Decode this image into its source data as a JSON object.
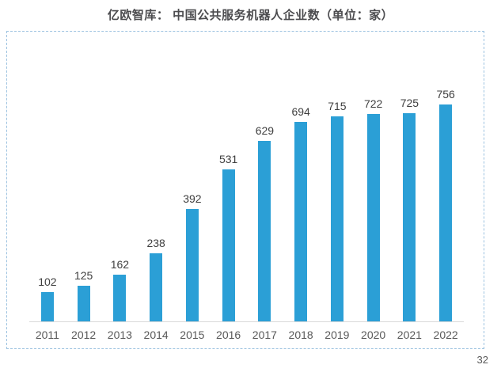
{
  "header": {
    "title": "亿欧智库： 中国公共服务机器人企业数（单位：家）"
  },
  "chart_data": {
    "type": "bar",
    "title": "亿欧智库： 中国公共服务机器人企业数（单位：家）",
    "categories": [
      "2011",
      "2012",
      "2013",
      "2014",
      "2015",
      "2016",
      "2017",
      "2018",
      "2019",
      "2020",
      "2021",
      "2022"
    ],
    "values": [
      102,
      125,
      162,
      238,
      392,
      531,
      629,
      694,
      715,
      722,
      725,
      756
    ],
    "xlabel": "",
    "ylabel": "",
    "ylim": [
      0,
      800
    ],
    "grid": false,
    "legend": false,
    "value_labels_shown": true,
    "bar_color": "#2b9fd6",
    "axis_line_color": "#d9d9d9",
    "frame_border_color": "#9cc2e0"
  },
  "page": {
    "number": "32"
  }
}
